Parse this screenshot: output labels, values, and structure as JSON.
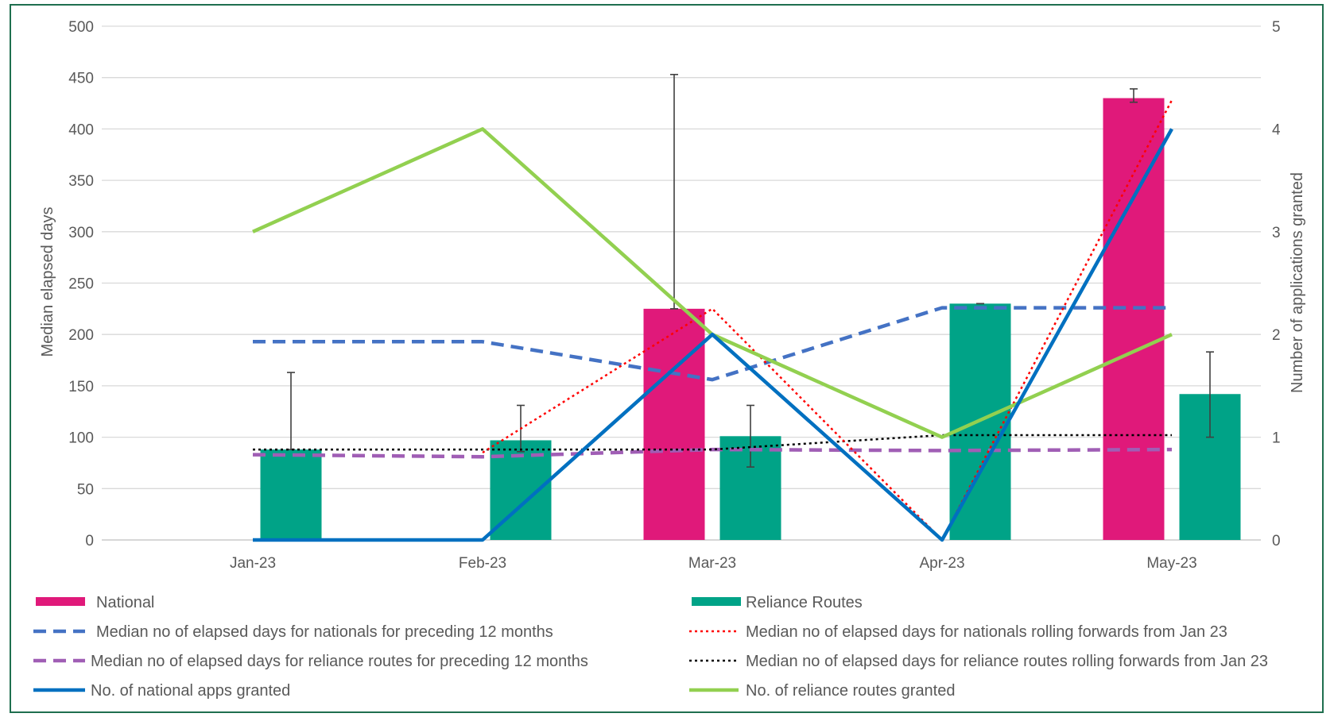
{
  "chart_data": {
    "type": "bar",
    "categories": [
      "Jan-23",
      "Feb-23",
      "Mar-23",
      "Apr-23",
      "May-23"
    ],
    "ylabel": "Median elapsed days",
    "y2label": "Number  of applications granted",
    "ylim": [
      0,
      500
    ],
    "y2lim": [
      0,
      5
    ],
    "yticks": [
      "0",
      "50",
      "100",
      "150",
      "200",
      "250",
      "300",
      "350",
      "400",
      "450",
      "500"
    ],
    "y2ticks": [
      "0",
      "1",
      "2",
      "3",
      "4",
      "5"
    ],
    "grid": true,
    "legend_position": "bottom",
    "bars": [
      {
        "name": "National",
        "color": "#E0197A",
        "values": [
          null,
          null,
          225,
          null,
          430
        ],
        "error_high": [
          null,
          null,
          453,
          null,
          439
        ],
        "error_low": [
          null,
          null,
          225,
          null,
          426
        ]
      },
      {
        "name": "Reliance Routes",
        "color": "#00A387",
        "values": [
          88,
          97,
          101,
          230,
          142
        ],
        "error_high": [
          163,
          131,
          131,
          230,
          183
        ],
        "error_low": [
          88,
          86,
          71,
          230,
          100
        ]
      }
    ],
    "lines": [
      {
        "name": "Median no of elapsed days for nationals for preceding 12 months",
        "color": "#4472C4",
        "style": "dashed",
        "axis": "left",
        "values": [
          193,
          193,
          156,
          226,
          226
        ]
      },
      {
        "name": "Median no of elapsed days for nationals rolling forwards from Jan 23",
        "color": "#FF0000",
        "style": "dotted",
        "axis": "left",
        "values": [
          null,
          85,
          225,
          0,
          428
        ]
      },
      {
        "name": "Median no of elapsed days for reliance routes for preceding 12 months",
        "color": "#A05EB5",
        "style": "dashed",
        "axis": "left",
        "values": [
          83,
          81,
          88,
          87,
          88
        ]
      },
      {
        "name": "Median no of elapsed days for reliance routes rolling forwards from Jan 23",
        "color": "#000000",
        "style": "dotted",
        "axis": "left",
        "values": [
          88,
          88,
          88,
          102,
          102
        ]
      },
      {
        "name": "No. of national apps granted",
        "color": "#0070C0",
        "style": "solid",
        "axis": "right",
        "values": [
          0,
          0,
          2,
          0,
          4
        ]
      },
      {
        "name": "No. of reliance routes granted",
        "color": "#92D050",
        "style": "solid",
        "axis": "right",
        "values": [
          3,
          4,
          2,
          1,
          2
        ]
      }
    ],
    "legend": [
      "National",
      "Reliance Routes",
      "Median no of elapsed days for nationals for preceding 12 months",
      "Median no of elapsed days for nationals rolling forwards from Jan 23",
      "Median no of elapsed days for reliance routes for preceding 12 months",
      "Median no of elapsed days for reliance routes rolling forwards from Jan 23",
      "No. of national apps granted",
      "No. of reliance routes granted"
    ],
    "frame_color": "#1F6F4F"
  }
}
